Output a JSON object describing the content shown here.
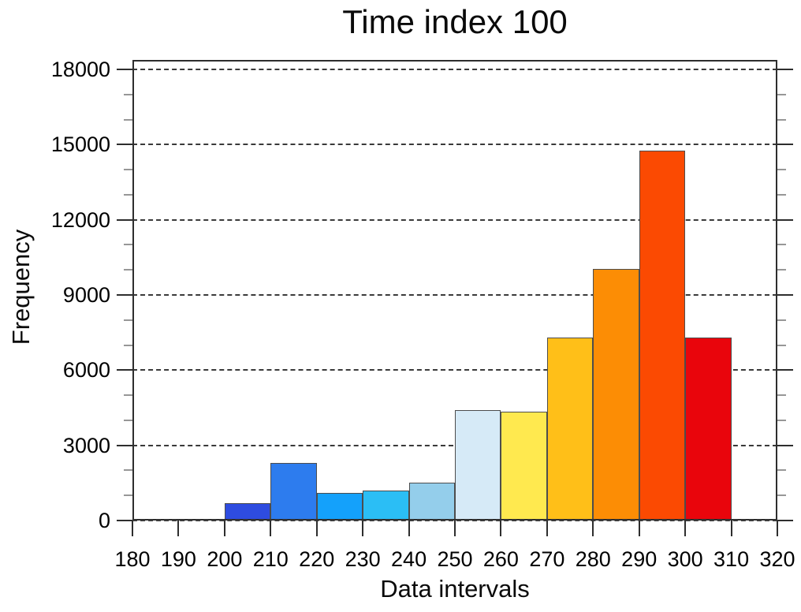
{
  "title": "Time index 100",
  "axes": {
    "x_label": "Data intervals",
    "y_label": "Frequency"
  },
  "chart_data": {
    "type": "bar",
    "subtype": "histogram",
    "title": "Time index 100",
    "xlabel": "Data intervals",
    "ylabel": "Frequency",
    "xlim": [
      180,
      320
    ],
    "ylim": [
      0,
      18400
    ],
    "x_ticks": [
      180,
      190,
      200,
      210,
      220,
      230,
      240,
      250,
      260,
      270,
      280,
      290,
      300,
      310,
      320
    ],
    "y_ticks": [
      0,
      3000,
      6000,
      9000,
      12000,
      15000,
      18000
    ],
    "y_minor_step": 1000,
    "grid": "horizontal dashed lines at major y ticks, dashed line at y=0",
    "legend": "none",
    "bins": [
      {
        "range": [
          180,
          190
        ],
        "value": 0,
        "color": null
      },
      {
        "range": [
          190,
          200
        ],
        "value": 0,
        "color": null
      },
      {
        "range": [
          200,
          210
        ],
        "value": 700,
        "color": "#2e4ce0"
      },
      {
        "range": [
          210,
          220
        ],
        "value": 2300,
        "color": "#2d7cee"
      },
      {
        "range": [
          220,
          230
        ],
        "value": 1100,
        "color": "#14a1fb"
      },
      {
        "range": [
          230,
          240
        ],
        "value": 1200,
        "color": "#2bbef5"
      },
      {
        "range": [
          240,
          250
        ],
        "value": 1500,
        "color": "#94ceeb"
      },
      {
        "range": [
          250,
          260
        ],
        "value": 4400,
        "color": "#d6eaf7"
      },
      {
        "range": [
          260,
          270
        ],
        "value": 4350,
        "color": "#ffe94f"
      },
      {
        "range": [
          270,
          280
        ],
        "value": 7300,
        "color": "#ffbf18"
      },
      {
        "range": [
          280,
          290
        ],
        "value": 10050,
        "color": "#fc8d05"
      },
      {
        "range": [
          290,
          300
        ],
        "value": 14750,
        "color": "#fb4a02"
      },
      {
        "range": [
          300,
          310
        ],
        "value": 7300,
        "color": "#e9050c"
      },
      {
        "range": [
          310,
          320
        ],
        "value": 50,
        "color": "#8e0303"
      }
    ]
  },
  "colors": {
    "background": "#ffffff",
    "text": "#0a0a0a",
    "axis": "#2e2e2e",
    "grid": "#3a3a3a",
    "tick_minor": "#979797",
    "bar_border": "#4d4d4d"
  }
}
